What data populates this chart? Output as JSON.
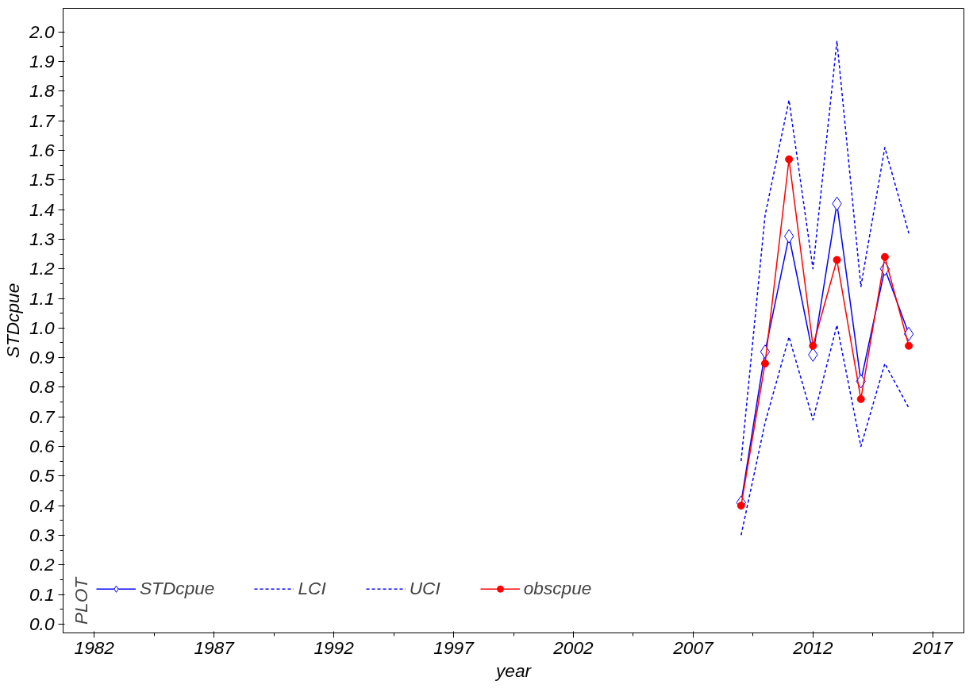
{
  "chart_data": {
    "type": "line",
    "xlabel": "year",
    "ylabel": "STDcpue",
    "legend_title": "PLOT",
    "legend": "bottom",
    "grid": false,
    "x": [
      2009,
      2010,
      2011,
      2012,
      2013,
      2014,
      2015,
      2016
    ],
    "xlim": [
      1980.7,
      2018.3
    ],
    "xticks": [
      1982,
      1987,
      1992,
      1997,
      2002,
      2007,
      2012,
      2017
    ],
    "ylim": [
      -0.03,
      2.08
    ],
    "yticks": [
      {
        "value": 0,
        "label": "0.0"
      },
      0.1,
      0.2,
      0.3,
      0.4,
      0.5,
      0.6,
      0.7,
      0.8,
      0.9,
      {
        "value": 1,
        "label": "1.0"
      },
      1.1,
      1.2,
      1.3,
      1.4,
      1.5,
      1.6,
      1.7,
      1.8,
      1.9,
      {
        "value": 2,
        "label": "2.0"
      }
    ],
    "series": [
      {
        "name": "STDcpue",
        "color": "#0000ff",
        "marker": "diamond",
        "line_style": "solid",
        "values": [
          0.41,
          0.92,
          1.31,
          0.91,
          1.42,
          0.82,
          1.2,
          0.98
        ]
      },
      {
        "name": "LCI",
        "color": "#0000ff",
        "marker": "none",
        "line_style": "dashed",
        "values": [
          0.3,
          0.68,
          0.97,
          0.69,
          1.01,
          0.6,
          0.88,
          0.73
        ]
      },
      {
        "name": "UCI",
        "color": "#0000ff",
        "marker": "none",
        "line_style": "dashed",
        "values": [
          0.55,
          1.38,
          1.77,
          1.2,
          1.97,
          1.14,
          1.61,
          1.32
        ]
      },
      {
        "name": "obscpue",
        "color": "#ff0000",
        "marker": "circle",
        "line_style": "solid",
        "values": [
          0.4,
          0.88,
          1.57,
          0.94,
          1.23,
          0.76,
          1.24,
          0.94
        ]
      }
    ]
  }
}
